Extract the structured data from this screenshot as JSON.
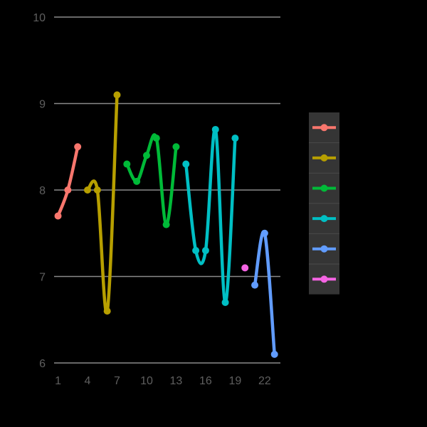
{
  "chart_data": {
    "type": "line",
    "title": "",
    "xlabel": "",
    "ylabel": "",
    "xlim": [
      0.6,
      23.6
    ],
    "ylim": [
      6,
      10
    ],
    "x_ticks": [
      1,
      4,
      7,
      10,
      13,
      16,
      19,
      22
    ],
    "y_ticks": [
      6,
      7,
      8,
      9,
      10
    ],
    "grid": "horizontal major",
    "legend_position": "right",
    "background": "#000000",
    "series": [
      {
        "color": "#F8766D",
        "x": [
          1,
          2,
          3
        ],
        "y": [
          7.7,
          8.0,
          8.5
        ]
      },
      {
        "color": "#B79F00",
        "x": [
          4,
          5,
          6,
          7
        ],
        "y": [
          8.0,
          8.0,
          6.6,
          9.1
        ]
      },
      {
        "color": "#00BA38",
        "x": [
          8,
          9,
          10,
          11,
          12,
          13
        ],
        "y": [
          8.3,
          8.1,
          8.4,
          8.6,
          7.6,
          8.5
        ]
      },
      {
        "color": "#00BFC4",
        "x": [
          14,
          15,
          16,
          17,
          18,
          19
        ],
        "y": [
          8.3,
          7.3,
          7.3,
          8.7,
          6.7,
          8.6
        ]
      },
      {
        "color": "#619CFF",
        "x": [
          21,
          22,
          23
        ],
        "y": [
          6.9,
          7.5,
          6.1
        ]
      },
      {
        "color": "#F564E3",
        "x": [
          20
        ],
        "y": [
          7.1
        ]
      }
    ]
  }
}
